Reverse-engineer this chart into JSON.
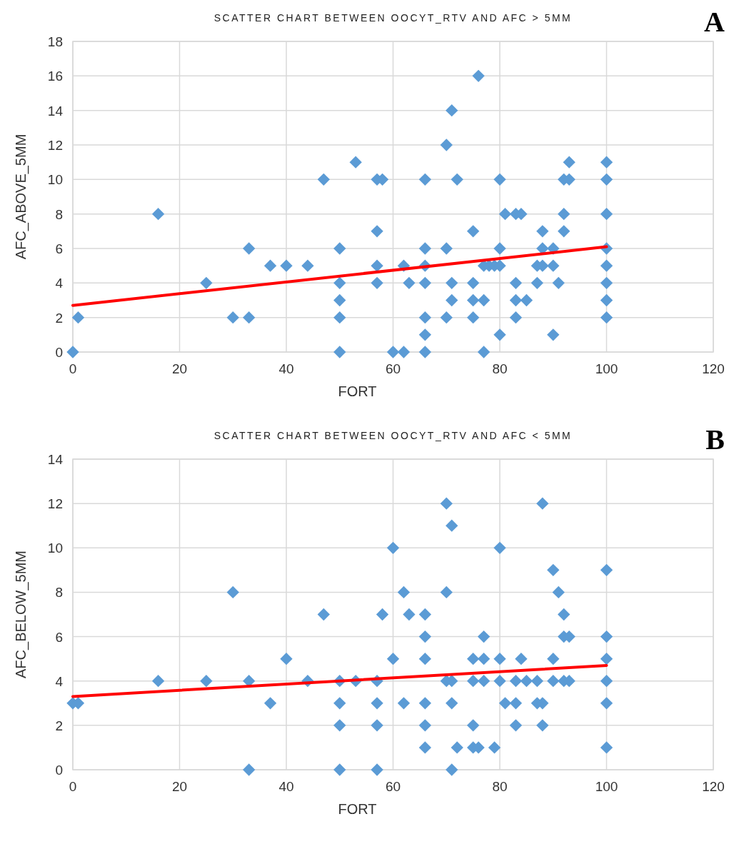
{
  "chart_data": [
    {
      "type": "scatter",
      "title": "SCATTER CHART BETWEEN OOCYT_RTV AND AFC > 5MM",
      "xlabel": "FORT",
      "ylabel": "AFC_ABOVE_5MM",
      "annotations": [
        "A"
      ],
      "xlim": [
        0,
        120
      ],
      "xticks": [
        0,
        20,
        40,
        60,
        80,
        100,
        120
      ],
      "ylim": [
        0,
        18
      ],
      "yticks": [
        0,
        2,
        4,
        6,
        8,
        10,
        12,
        14,
        16,
        18
      ],
      "grid": true,
      "marker": "diamond",
      "series": [
        {
          "color": "#5b9bd5",
          "x": [
            0,
            1,
            16,
            25,
            30,
            33,
            33,
            37,
            40,
            44,
            47,
            50,
            50,
            50,
            50,
            50,
            53,
            57,
            58,
            57,
            57,
            57,
            60,
            62,
            62,
            63,
            66,
            66,
            66,
            66,
            66,
            66,
            66,
            70,
            70,
            70,
            71,
            71,
            71,
            72,
            75,
            75,
            75,
            75,
            76,
            77,
            77,
            77,
            78,
            79,
            80,
            80,
            80,
            80,
            81,
            83,
            84,
            83,
            83,
            83,
            85,
            87,
            87,
            88,
            88,
            88,
            90,
            90,
            90,
            91,
            92,
            93,
            93,
            92,
            92,
            100,
            100,
            100,
            100,
            100,
            100,
            100,
            100
          ],
          "values": [
            0,
            2,
            8,
            4,
            2,
            2,
            6,
            5,
            5,
            5,
            10,
            6,
            4,
            3,
            2,
            0,
            11,
            10,
            10,
            7,
            5,
            4,
            0,
            0,
            5,
            4,
            10,
            6,
            5,
            4,
            2,
            1,
            0,
            12,
            6,
            2,
            14,
            4,
            3,
            10,
            7,
            4,
            3,
            2,
            16,
            5,
            3,
            0,
            5,
            5,
            10,
            6,
            5,
            1,
            8,
            8,
            8,
            4,
            3,
            2,
            3,
            5,
            4,
            7,
            6,
            5,
            6,
            5,
            1,
            4,
            10,
            10,
            11,
            8,
            7,
            11,
            10,
            8,
            6,
            5,
            4,
            3,
            2
          ]
        },
        {
          "type": "line",
          "marker": "none",
          "color": "#ff0000",
          "x": [
            0,
            100
          ],
          "values": [
            2.7,
            6.1
          ]
        }
      ]
    },
    {
      "type": "scatter",
      "title": "SCATTER CHART BETWEEN OOCYT_RTV AND AFC < 5MM",
      "xlabel": "FORT",
      "ylabel": "AFC_BELOW_5MM",
      "annotations": [
        "B"
      ],
      "xlim": [
        0,
        120
      ],
      "xticks": [
        0,
        20,
        40,
        60,
        80,
        100,
        120
      ],
      "ylim": [
        0,
        14
      ],
      "yticks": [
        0,
        2,
        4,
        6,
        8,
        10,
        12,
        14
      ],
      "grid": true,
      "marker": "diamond",
      "series": [
        {
          "color": "#5b9bd5",
          "x": [
            0,
            1,
            16,
            25,
            30,
            33,
            33,
            37,
            40,
            44,
            47,
            50,
            50,
            50,
            50,
            53,
            57,
            57,
            57,
            57,
            58,
            60,
            60,
            62,
            62,
            63,
            66,
            66,
            66,
            66,
            66,
            66,
            70,
            70,
            70,
            71,
            71,
            71,
            71,
            72,
            75,
            75,
            75,
            75,
            76,
            77,
            77,
            77,
            79,
            80,
            80,
            80,
            81,
            83,
            83,
            83,
            84,
            85,
            87,
            87,
            88,
            88,
            88,
            90,
            90,
            90,
            91,
            92,
            92,
            93,
            92,
            93,
            100,
            100,
            100,
            100,
            100,
            100
          ],
          "values": [
            3,
            3,
            4,
            4,
            8,
            4,
            0,
            3,
            5,
            4,
            7,
            4,
            3,
            2,
            0,
            4,
            4,
            3,
            2,
            0,
            7,
            10,
            5,
            8,
            3,
            7,
            7,
            6,
            5,
            3,
            2,
            1,
            12,
            8,
            4,
            11,
            4,
            3,
            0,
            1,
            5,
            4,
            2,
            1,
            1,
            6,
            5,
            4,
            1,
            10,
            5,
            4,
            3,
            4,
            3,
            2,
            5,
            4,
            4,
            3,
            3,
            2,
            12,
            9,
            5,
            4,
            8,
            7,
            6,
            6,
            4,
            4,
            9,
            6,
            5,
            4,
            3,
            1
          ]
        },
        {
          "type": "line",
          "marker": "none",
          "color": "#ff0000",
          "x": [
            0,
            100
          ],
          "values": [
            3.3,
            4.7
          ]
        }
      ]
    }
  ]
}
